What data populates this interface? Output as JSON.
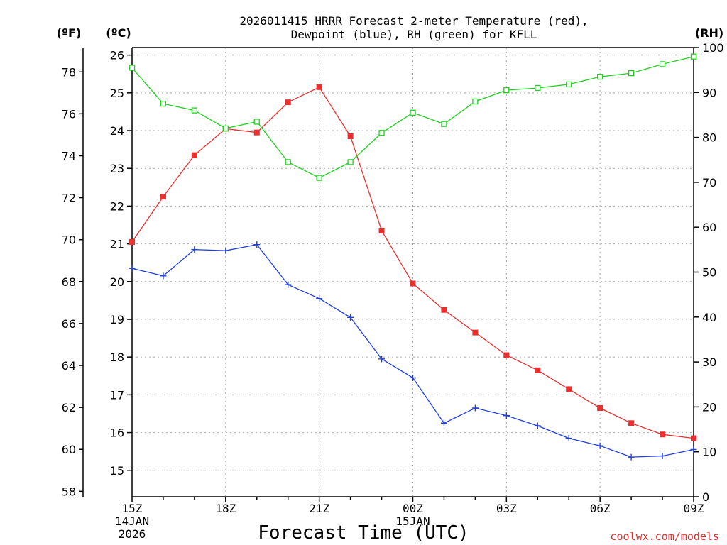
{
  "chart_data": {
    "type": "line",
    "title_lines": [
      "2026011415 HRRR Forecast 2-meter Temperature (red),",
      "Dewpoint (blue), RH (green) for KFLL"
    ],
    "xlabel": "Forecast Time (UTC)",
    "credit": "coolwx.com/models",
    "units": {
      "left_f": "(ºF)",
      "left_c": "(ºC)",
      "right": "(RH)"
    },
    "x_hours": [
      0,
      1,
      2,
      3,
      4,
      5,
      6,
      7,
      8,
      9,
      10,
      11,
      12,
      13,
      14,
      15,
      16,
      17,
      18
    ],
    "x_ticks": [
      {
        "hour": 0,
        "lines": [
          "15Z",
          "14JAN",
          "2026"
        ]
      },
      {
        "hour": 3,
        "lines": [
          "18Z"
        ]
      },
      {
        "hour": 6,
        "lines": [
          "21Z"
        ]
      },
      {
        "hour": 9,
        "lines": [
          "00Z",
          "15JAN"
        ]
      },
      {
        "hour": 12,
        "lines": [
          "03Z"
        ]
      },
      {
        "hour": 15,
        "lines": [
          "06Z"
        ]
      },
      {
        "hour": 18,
        "lines": [
          "09Z"
        ]
      }
    ],
    "y_celsius": {
      "range": [
        14.3,
        26.2
      ],
      "ticks": [
        15,
        16,
        17,
        18,
        19,
        20,
        21,
        22,
        23,
        24,
        25,
        26
      ]
    },
    "y_fahrenheit": {
      "ticks": [
        58,
        60,
        62,
        64,
        66,
        68,
        70,
        72,
        74,
        76,
        78
      ]
    },
    "y_rh": {
      "range": [
        0,
        100
      ],
      "ticks": [
        0,
        10,
        20,
        30,
        40,
        50,
        60,
        70,
        80,
        90,
        100
      ]
    },
    "series": [
      {
        "name": "2-meter Temperature",
        "color": "#e83030",
        "marker": "filled-square",
        "axis": "celsius",
        "values": [
          21.05,
          22.25,
          23.35,
          24.05,
          23.95,
          24.75,
          25.15,
          23.85,
          21.35,
          19.95,
          19.25,
          18.65,
          18.05,
          17.65,
          17.15,
          16.65,
          16.25,
          15.95,
          15.85
        ]
      },
      {
        "name": "Dewpoint",
        "color": "#2040e0",
        "marker": "plus",
        "axis": "celsius",
        "values": [
          20.35,
          20.15,
          20.85,
          20.82,
          20.98,
          19.92,
          19.55,
          19.05,
          17.95,
          17.45,
          16.25,
          16.65,
          16.45,
          16.18,
          15.85,
          15.65,
          15.35,
          15.38,
          15.55
        ]
      },
      {
        "name": "RH",
        "color": "#20d020",
        "marker": "open-square",
        "axis": "rh",
        "values": [
          95.5,
          87.5,
          86.0,
          82.0,
          83.5,
          74.5,
          71.0,
          74.5,
          81.0,
          85.5,
          83.0,
          88.0,
          90.5,
          91.0,
          91.8,
          93.5,
          94.3,
          96.3,
          98.0
        ]
      }
    ]
  }
}
